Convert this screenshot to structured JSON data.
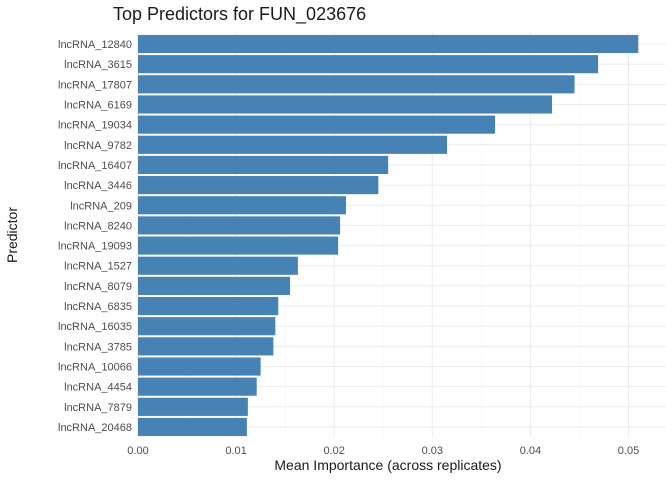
{
  "chart_data": {
    "type": "bar",
    "orientation": "horizontal",
    "title": "Top Predictors for FUN_023676",
    "xlabel": "Mean Importance (across replicates)",
    "ylabel": "Predictor",
    "xlim": [
      0,
      0.0525
    ],
    "xticks": [
      0.0,
      0.01,
      0.02,
      0.03,
      0.04,
      0.05
    ],
    "xtick_labels": [
      "0.00",
      "0.01",
      "0.02",
      "0.03",
      "0.04",
      "0.05"
    ],
    "grid": true,
    "bar_color": "#4682B4",
    "categories": [
      "lncRNA_12840",
      "lncRNA_3615",
      "lncRNA_17807",
      "lncRNA_6169",
      "lncRNA_19034",
      "lncRNA_9782",
      "lncRNA_16407",
      "lncRNA_3446",
      "lncRNA_209",
      "lncRNA_8240",
      "lncRNA_19093",
      "lncRNA_1527",
      "lncRNA_8079",
      "lncRNA_6835",
      "lncRNA_16035",
      "lncRNA_3785",
      "lncRNA_10066",
      "lncRNA_4454",
      "lncRNA_7879",
      "lncRNA_20468"
    ],
    "values": [
      0.051,
      0.0469,
      0.0445,
      0.0422,
      0.0364,
      0.0315,
      0.0255,
      0.0245,
      0.0212,
      0.0206,
      0.0204,
      0.0163,
      0.0155,
      0.0143,
      0.014,
      0.0138,
      0.0125,
      0.0121,
      0.0112,
      0.0111
    ]
  }
}
